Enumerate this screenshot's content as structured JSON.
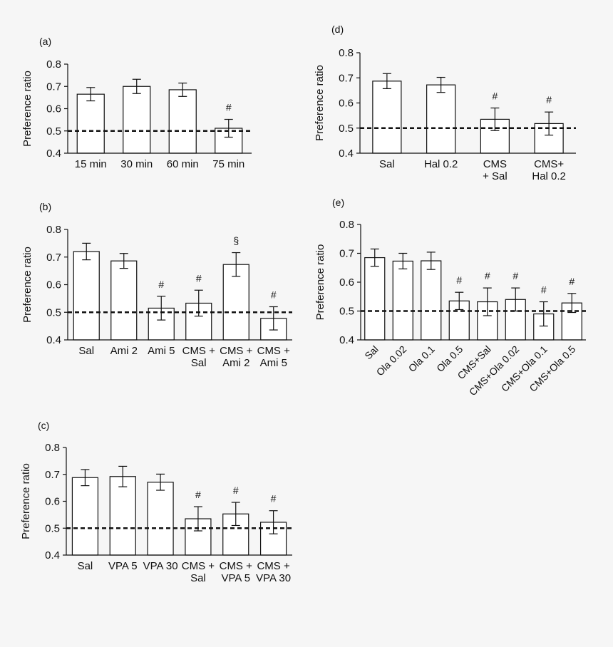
{
  "colors": {
    "background": "#f6f6f6",
    "bar_fill": "#ffffff",
    "ink": "#111111"
  },
  "chart_data": [
    {
      "panel": "(a)",
      "type": "bar",
      "ylabel": "Preference ratio",
      "ylim": [
        0.4,
        0.8
      ],
      "yticks": [
        "0.4",
        "0.5",
        "0.6",
        "0.7",
        "0.8"
      ],
      "reference_line": 0.5,
      "categories": [
        [
          "15 min"
        ],
        [
          "30 min"
        ],
        [
          "60 min"
        ],
        [
          "75 min"
        ]
      ],
      "values": [
        0.665,
        0.7,
        0.685,
        0.512
      ],
      "errors": [
        0.03,
        0.032,
        0.03,
        0.04
      ],
      "markers": [
        "",
        "",
        "",
        "#"
      ]
    },
    {
      "panel": "(b)",
      "type": "bar",
      "ylabel": "Preference ratio",
      "ylim": [
        0.4,
        0.8
      ],
      "yticks": [
        "0.4",
        "0.5",
        "0.6",
        "0.7",
        "0.8"
      ],
      "reference_line": 0.5,
      "categories": [
        [
          "Sal"
        ],
        [
          "Ami 2"
        ],
        [
          "Ami 5"
        ],
        [
          "CMS +",
          "Sal"
        ],
        [
          "CMS +",
          "Ami 2"
        ],
        [
          "CMS +",
          "Ami 5"
        ]
      ],
      "values": [
        0.72,
        0.686,
        0.515,
        0.533,
        0.673,
        0.478
      ],
      "errors": [
        0.03,
        0.027,
        0.043,
        0.047,
        0.043,
        0.042
      ],
      "markers": [
        "",
        "",
        "#",
        "#",
        "§",
        "#"
      ]
    },
    {
      "panel": "(c)",
      "type": "bar",
      "ylabel": "Preference ratio",
      "ylim": [
        0.4,
        0.8
      ],
      "yticks": [
        "0.4",
        "0.5",
        "0.6",
        "0.7",
        "0.8"
      ],
      "reference_line": 0.5,
      "categories": [
        [
          "Sal"
        ],
        [
          "VPA 5"
        ],
        [
          "VPA 30"
        ],
        [
          "CMS +",
          "Sal"
        ],
        [
          "CMS +",
          "VPA 5"
        ],
        [
          "CMS +",
          "VPA 30"
        ]
      ],
      "values": [
        0.688,
        0.692,
        0.671,
        0.535,
        0.553,
        0.522
      ],
      "errors": [
        0.03,
        0.038,
        0.03,
        0.045,
        0.043,
        0.043
      ],
      "markers": [
        "",
        "",
        "",
        "#",
        "#",
        "#"
      ]
    },
    {
      "panel": "(d)",
      "type": "bar",
      "ylabel": "Preference ratio",
      "ylim": [
        0.4,
        0.8
      ],
      "yticks": [
        "0.4",
        "0.5",
        "0.6",
        "0.7",
        "0.8"
      ],
      "reference_line": 0.5,
      "categories": [
        [
          "Sal"
        ],
        [
          "Hal 0.2"
        ],
        [
          "CMS",
          "+ Sal"
        ],
        [
          "CMS+",
          "Hal 0.2"
        ]
      ],
      "values": [
        0.687,
        0.672,
        0.535,
        0.518
      ],
      "errors": [
        0.03,
        0.03,
        0.045,
        0.046
      ],
      "markers": [
        "",
        "",
        "#",
        "#"
      ]
    },
    {
      "panel": "(e)",
      "type": "bar",
      "ylabel": "Preference ratio",
      "ylim": [
        0.4,
        0.8
      ],
      "yticks": [
        "0.4",
        "0.5",
        "0.6",
        "0.7",
        "0.8"
      ],
      "reference_line": 0.5,
      "categories": [
        [
          "Sal"
        ],
        [
          "Ola 0.02"
        ],
        [
          "Ola 0.1"
        ],
        [
          "Ola 0.5"
        ],
        [
          "CMS+Sal"
        ],
        [
          "CMS+Ola 0.02"
        ],
        [
          "CMS+Ola 0.1"
        ],
        [
          "CMS+Ola 0.5"
        ]
      ],
      "values": [
        0.685,
        0.673,
        0.674,
        0.535,
        0.532,
        0.54,
        0.49,
        0.528
      ],
      "errors": [
        0.03,
        0.027,
        0.03,
        0.03,
        0.048,
        0.04,
        0.042,
        0.033
      ],
      "markers": [
        "",
        "",
        "",
        "#",
        "#",
        "#",
        "#",
        "#"
      ],
      "rotated_labels": true
    }
  ]
}
